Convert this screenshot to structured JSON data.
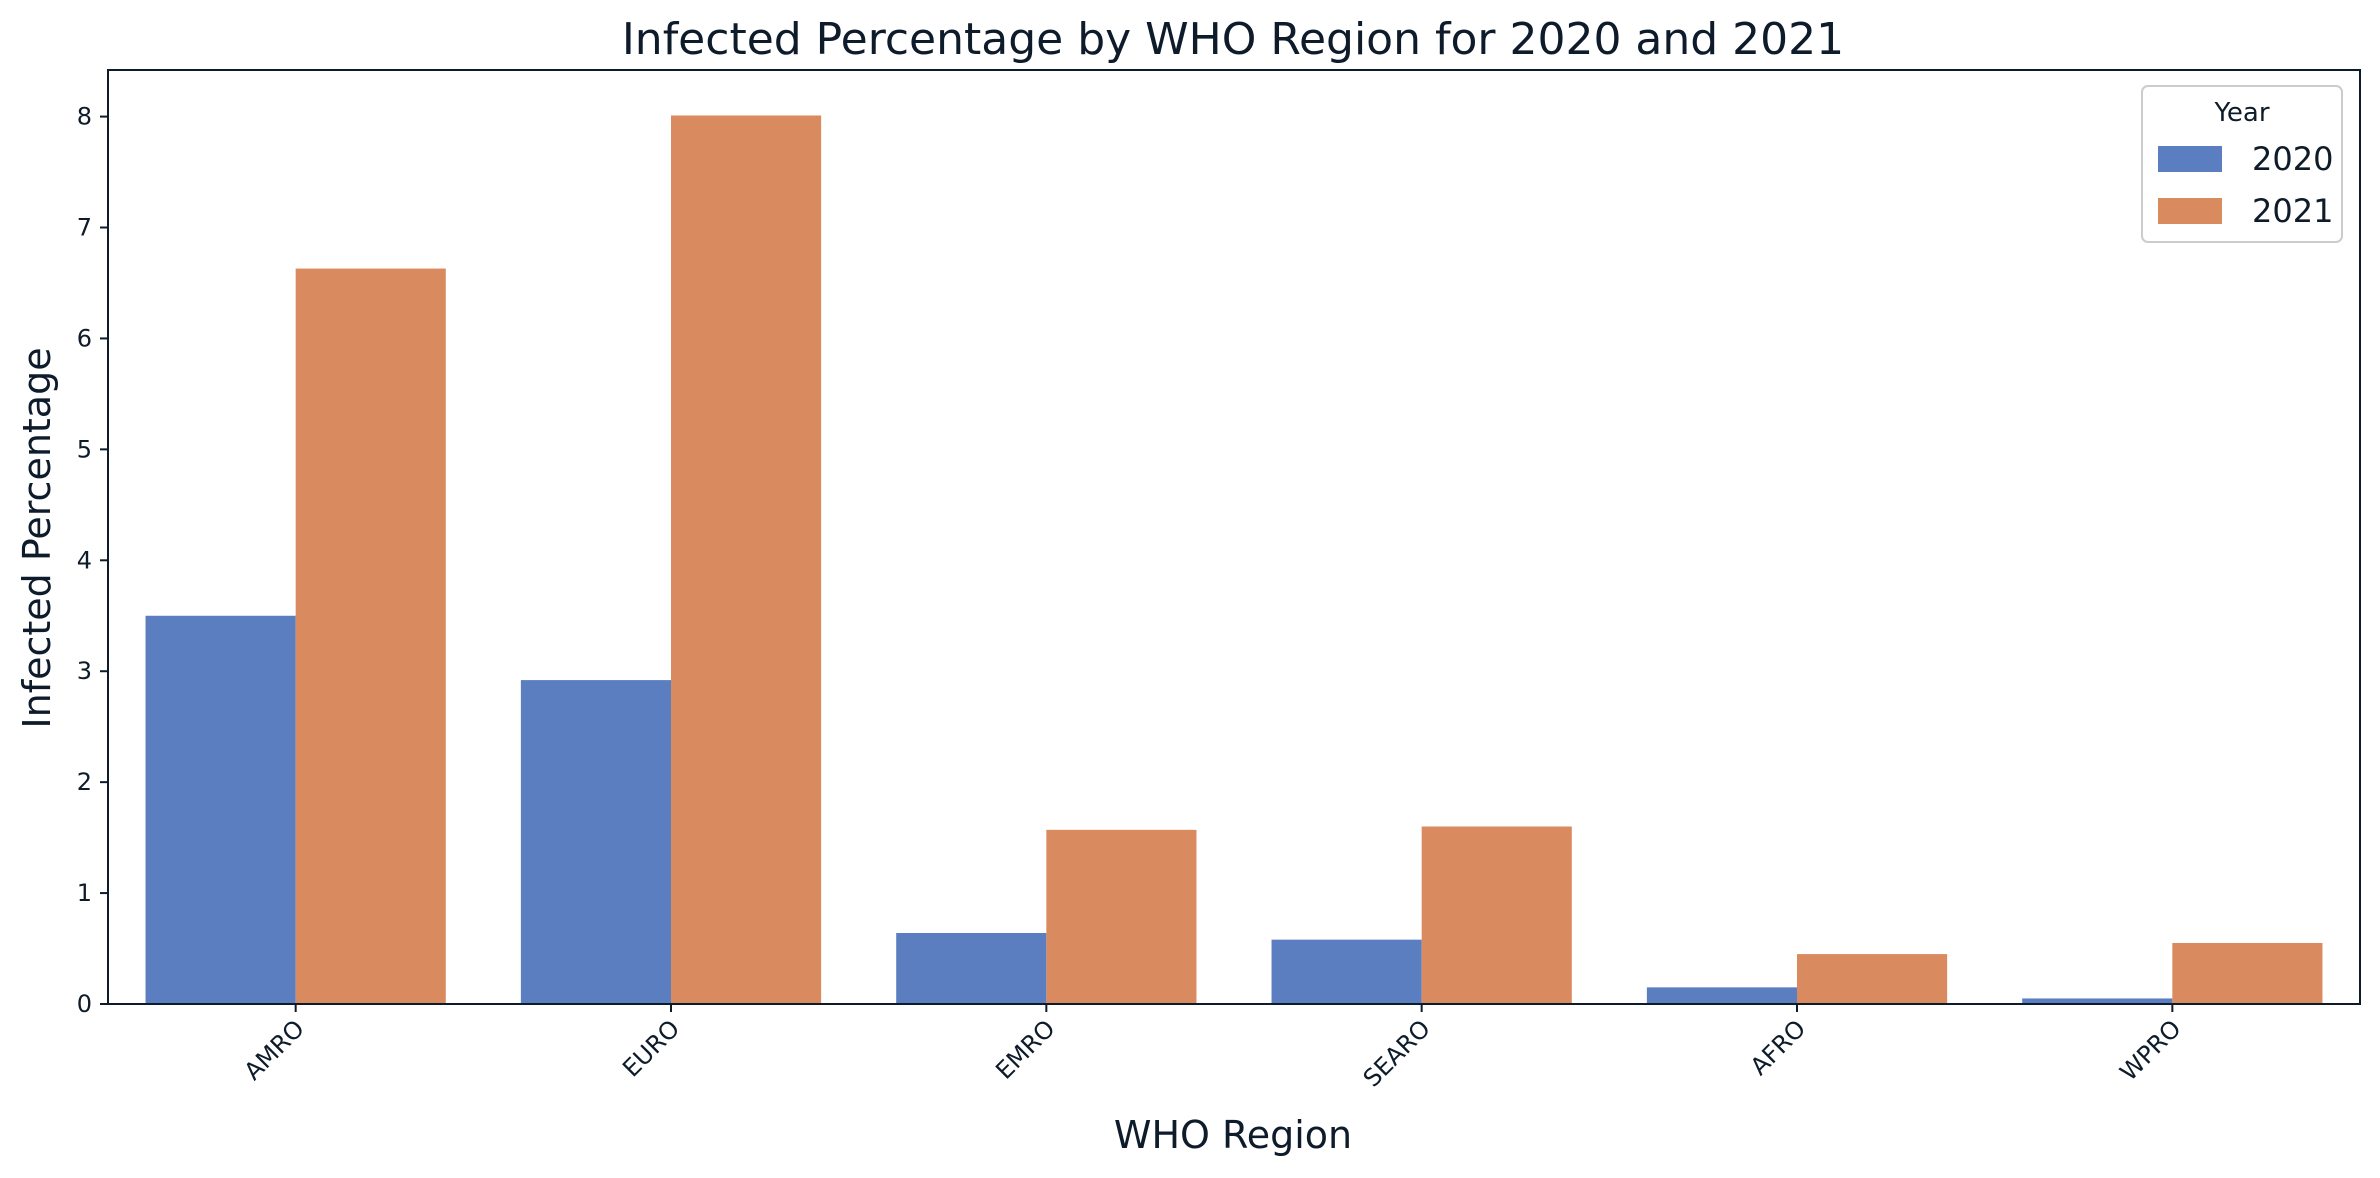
{
  "chart_data": {
    "type": "bar",
    "title": "Infected Percentage by WHO Region for 2020 and 2021",
    "xlabel": "WHO Region",
    "ylabel": "Infected Percentage",
    "categories": [
      "AMRO",
      "EURO",
      "EMRO",
      "SEARO",
      "AFRO",
      "WPRO"
    ],
    "series": [
      {
        "name": "2020",
        "color": "#5b7ec0",
        "values": [
          3.5,
          2.92,
          0.64,
          0.58,
          0.15,
          0.05
        ]
      },
      {
        "name": "2021",
        "color": "#d98b5f",
        "values": [
          6.63,
          8.01,
          1.57,
          1.6,
          0.45,
          0.55
        ]
      }
    ],
    "ylim": [
      0,
      8.42
    ],
    "yticks": [
      0,
      1,
      2,
      3,
      4,
      5,
      6,
      7,
      8
    ],
    "legend": {
      "title": "Year",
      "position": "top-right"
    },
    "grid": false
  }
}
